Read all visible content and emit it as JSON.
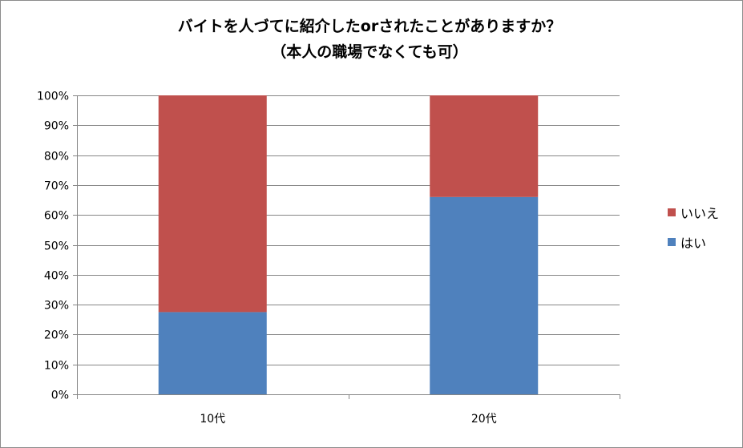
{
  "chart_data": {
    "type": "bar",
    "stacked": true,
    "title_line1": "バイトを人づてに紹介したorされたことがありますか？",
    "title_line2": "（本人の職場でなくても可）",
    "categories": [
      "10代",
      "20代"
    ],
    "series": [
      {
        "name": "はい",
        "color": "#4f81bd",
        "values": [
          27.5,
          66
        ]
      },
      {
        "name": "いいえ",
        "color": "#c0504d",
        "values": [
          72.5,
          34
        ]
      }
    ],
    "ylim": [
      0,
      100
    ],
    "yticks": [
      "0%",
      "10%",
      "20%",
      "30%",
      "40%",
      "50%",
      "60%",
      "70%",
      "80%",
      "90%",
      "100%"
    ],
    "grid": true,
    "legend_position": "right",
    "legend_order": [
      "いいえ",
      "はい"
    ]
  }
}
